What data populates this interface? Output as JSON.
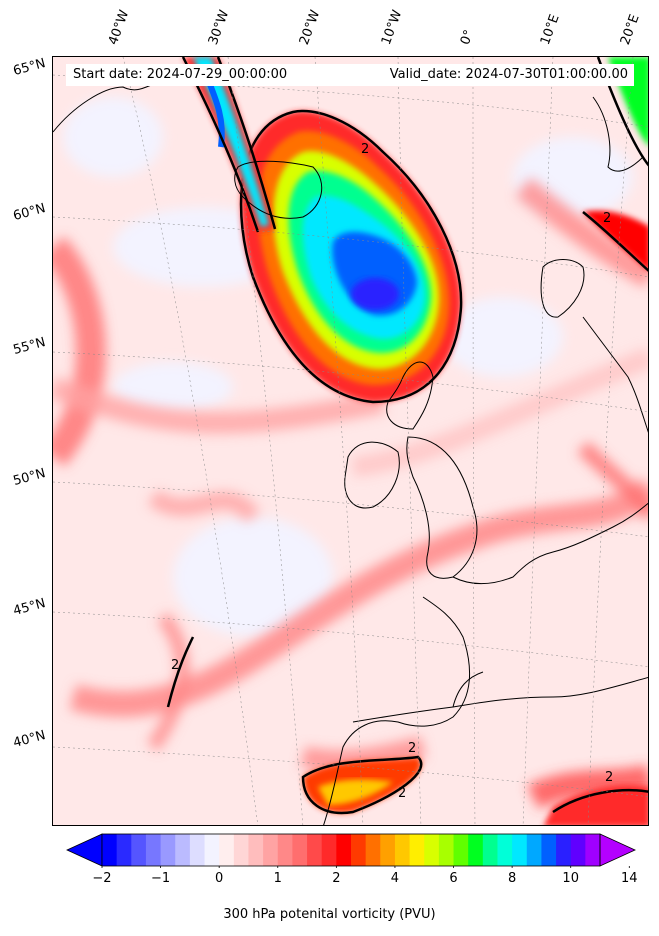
{
  "header": {
    "start_date": "Start date: 2024-07-29_00:00:00",
    "valid_date": "Valid_date: 2024-07-30T01:00:00.00"
  },
  "map": {
    "longitude_labels": [
      "40°W",
      "30°W",
      "20°W",
      "10°W",
      "0°",
      "10°E",
      "20°E"
    ],
    "latitude_labels": [
      "65°N",
      "60°N",
      "55°N",
      "50°N",
      "45°N",
      "40°N"
    ],
    "contour_level_label": "2",
    "colors": {
      "background": "#ffe4e4",
      "land_outline": "#000000",
      "contour": "#000000"
    }
  },
  "colorbar": {
    "title": "300 hPa potenital vorticity (PVU)",
    "tick_labels": [
      "−2",
      "−1",
      "0",
      "1",
      "2",
      "4",
      "6",
      "8",
      "10",
      "14"
    ],
    "colors": [
      "#0000ff",
      "#2a2aff",
      "#5555ff",
      "#7777ff",
      "#9999ff",
      "#bbbbff",
      "#ddddff",
      "#f3f3ff",
      "#ffeeee",
      "#ffd6d6",
      "#ffbdbd",
      "#ffa3a3",
      "#ff8888",
      "#ff6e6e",
      "#ff4a4a",
      "#ff2a2a",
      "#ff0000",
      "#ff3a00",
      "#ff7000",
      "#ffa000",
      "#ffc800",
      "#ffee00",
      "#d8ff00",
      "#a8ff00",
      "#60ff00",
      "#00ff20",
      "#00ff90",
      "#00ffd8",
      "#00e8ff",
      "#00a8ff",
      "#0060ff",
      "#2a20ff",
      "#6000ff",
      "#a000ff"
    ],
    "extend_low_color": "#0000ff",
    "extend_high_color": "#b400ff"
  }
}
